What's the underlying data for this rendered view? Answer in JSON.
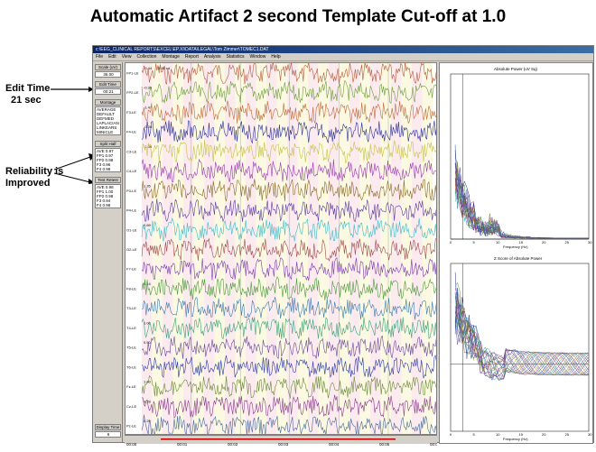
{
  "slide": {
    "title": "Automatic Artifact 2 second Template Cut-off at 1.0",
    "callout_edit_time": [
      "Edit Time",
      "21 sec"
    ],
    "callout_reliability": [
      "Reliability is",
      "Improved"
    ]
  },
  "window": {
    "title": "c:\\EEG_CLINICAL REPORTS\\EXCEL\\EP.XI\\DATA\\LEGAL\\Tom Zimmer\\TOMEC1.DAT",
    "menu": [
      "File",
      "Edit",
      "View",
      "Collection",
      "Montage",
      "Report",
      "Analysis",
      "Statistics",
      "Window",
      "Help"
    ]
  },
  "left_panel": {
    "scale_label": "Scale (uV)",
    "scale_value": "36.00",
    "edit_time_label": "Edit Time",
    "edit_time_value": "00:21",
    "montage_label": "Montage",
    "montage_options": [
      "AVERAGE",
      "DEFAULT",
      "DEFMED",
      "LAPLACIAN",
      "LINKEARS",
      "MINICLE"
    ],
    "split_half_label": "Split Half",
    "split_half_values": [
      "AVE 0.97",
      "FP1 0.97",
      "FP2 0.98",
      "F3 0.96",
      "F4 0.99"
    ],
    "test_retest_label": "Test Retest",
    "test_retest_values": [
      "AVE 0.98",
      "FP1 1.00",
      "FP2 0.98",
      "F3 0.94",
      "F4 0.98"
    ],
    "display_time_label": "Display Time",
    "display_time_value": "6"
  },
  "eeg": {
    "channels": [
      {
        "label": "FP1-LE",
        "value": "-0.44",
        "color": "#b85a3c"
      },
      {
        "label": "FP2-LE",
        "value": "-0.36",
        "color": "#6c9f3a"
      },
      {
        "label": "F3-LE",
        "value": "-1.47",
        "color": "#c06a3a"
      },
      {
        "label": "F4-LE",
        "value": "-0.26",
        "color": "#2a2f9a"
      },
      {
        "label": "C3-LE",
        "value": "-1.00",
        "color": "#c8c048"
      },
      {
        "label": "C4-LE",
        "value": "",
        "color": "#9a3ab0"
      },
      {
        "label": "P3-LE",
        "value": "1.26",
        "color": "#8a6a2a"
      },
      {
        "label": "P4-LE",
        "value": "",
        "color": "#5a3aa0"
      },
      {
        "label": "O1-LE",
        "value": "0.69",
        "color": "#3abcc8"
      },
      {
        "label": "O2-LE",
        "value": "",
        "color": "#a04a4a"
      },
      {
        "label": "F7-LE",
        "value": "",
        "color": "#7a3ab0"
      },
      {
        "label": "F8-LE",
        "value": "0.14",
        "color": "#4a9a3a"
      },
      {
        "label": "T3-LE",
        "value": "",
        "color": "#3a7ab0"
      },
      {
        "label": "T4-LE",
        "value": "1.06",
        "color": "#3aa07a"
      },
      {
        "label": "T5-LE",
        "value": "0.50",
        "color": "#6a4a9a"
      },
      {
        "label": "T6-LE",
        "value": "",
        "color": "#2a3aa8"
      },
      {
        "label": "Fz-LE",
        "value": "1.20",
        "color": "#6a8a3a"
      },
      {
        "label": "Cz-LE",
        "value": "0.28",
        "color": "#8a3a8a"
      },
      {
        "label": "Pz-LE",
        "value": "0.29",
        "color": "#4a6a9a"
      }
    ],
    "time_labels": [
      "00:00",
      "00:01",
      "00:02",
      "00:03",
      "00:04",
      "00:05",
      "00:06"
    ],
    "first_value_unit": "5.06 sd"
  },
  "right_panel": {
    "top_title": "Absolute Power (uV Sq)",
    "bottom_title": "Z Score of Absolute Power",
    "x_label": "Frequency (Hz)"
  },
  "colors": {
    "accent_titlebar": "#0a246a",
    "artifact_pink": "#f8d8e0",
    "artifact_yellow": "#f8f4c8"
  }
}
